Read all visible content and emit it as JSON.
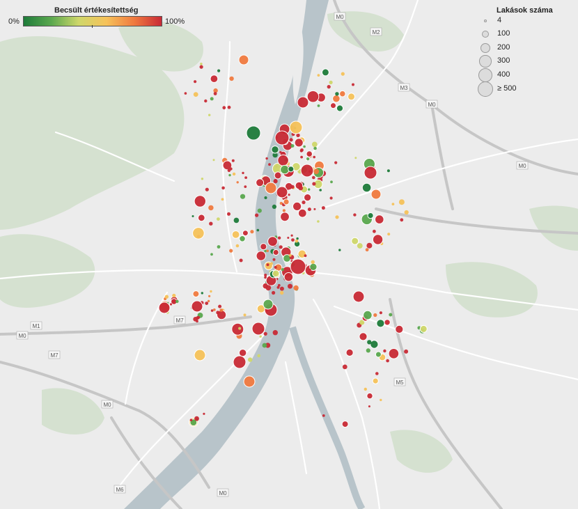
{
  "color_legend": {
    "title": "Becsült értékesítettség",
    "min_label": "0%",
    "max_label": "100%",
    "colors": [
      "#1e7b3a",
      "#5aa84e",
      "#cfd76a",
      "#f6c25a",
      "#f07a3f",
      "#c82a35"
    ]
  },
  "size_legend": {
    "title": "Lakások száma",
    "items": [
      {
        "label": "4",
        "value": 4
      },
      {
        "label": "100",
        "value": 100
      },
      {
        "label": "200",
        "value": 200
      },
      {
        "label": "300",
        "value": 300
      },
      {
        "label": "400",
        "value": 400
      },
      {
        "label": "≥ 500",
        "value": 500
      }
    ]
  },
  "road_labels": [
    "M0",
    "M2",
    "M3",
    "M0",
    "M0",
    "M1",
    "M7",
    "M0",
    "M7",
    "M0",
    "M5",
    "M6",
    "M0"
  ],
  "map_colors": {
    "background": "#ececec",
    "river": "#b7c3c9",
    "green": "#d6e2d1",
    "road": "#ffffff",
    "highway": "#c9c9c9"
  }
}
